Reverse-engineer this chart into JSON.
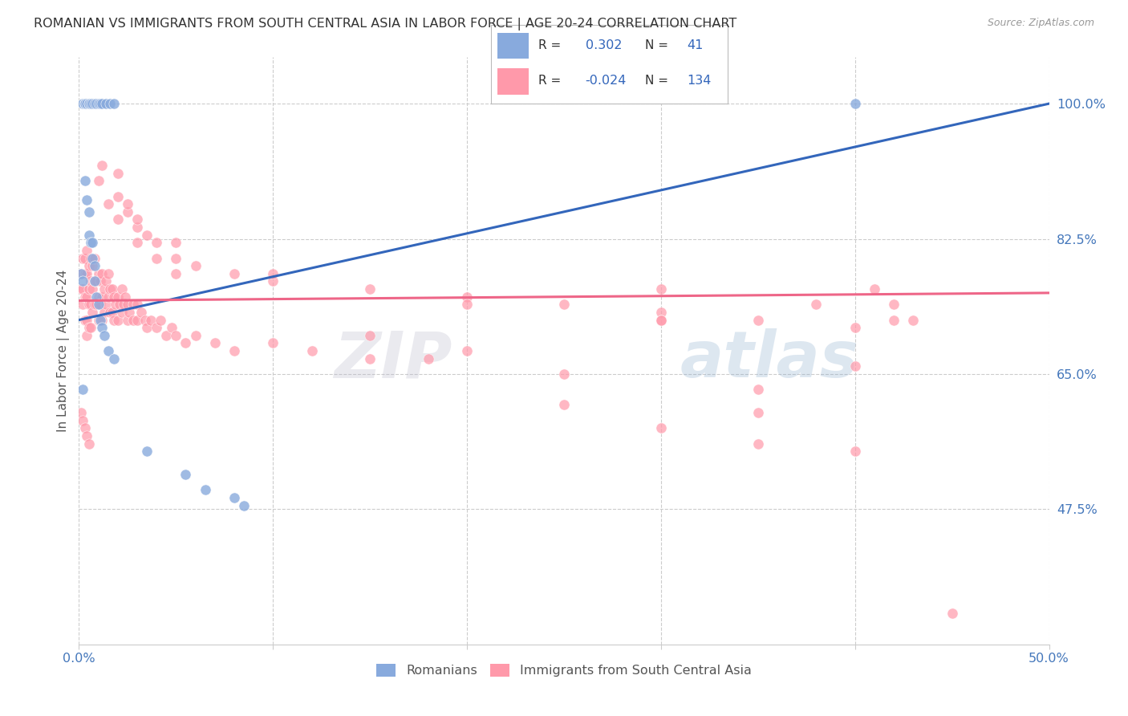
{
  "title": "ROMANIAN VS IMMIGRANTS FROM SOUTH CENTRAL ASIA IN LABOR FORCE | AGE 20-24 CORRELATION CHART",
  "source": "Source: ZipAtlas.com",
  "ylabel": "In Labor Force | Age 20-24",
  "xlim": [
    0.0,
    0.5
  ],
  "ylim": [
    0.3,
    1.06
  ],
  "yticks": [
    0.475,
    0.65,
    0.825,
    1.0
  ],
  "ytick_labels": [
    "47.5%",
    "65.0%",
    "82.5%",
    "100.0%"
  ],
  "xticks": [
    0.0,
    0.1,
    0.2,
    0.3,
    0.4,
    0.5
  ],
  "xtick_labels": [
    "0.0%",
    "",
    "",
    "",
    "",
    "50.0%"
  ],
  "blue_color": "#88AADD",
  "pink_color": "#FF99AA",
  "blue_line_color": "#3366BB",
  "pink_line_color": "#EE6688",
  "axis_color": "#4477BB",
  "watermark_text": "ZIPatlas",
  "watermark_color": "#AABBDD",
  "legend_R_color": "#3366BB",
  "ro_x": [
    0.002,
    0.003,
    0.003,
    0.004,
    0.005,
    0.005,
    0.006,
    0.007,
    0.008,
    0.009,
    0.01,
    0.011,
    0.012,
    0.014,
    0.016,
    0.018,
    0.003,
    0.004,
    0.005,
    0.005,
    0.006,
    0.007,
    0.007,
    0.008,
    0.008,
    0.009,
    0.01,
    0.011,
    0.012,
    0.013,
    0.015,
    0.018,
    0.002,
    0.035,
    0.055,
    0.065,
    0.08,
    0.085,
    0.4,
    0.001,
    0.002
  ],
  "ro_y": [
    1.0,
    1.0,
    1.0,
    1.0,
    1.0,
    1.0,
    1.0,
    1.0,
    1.0,
    1.0,
    1.0,
    1.0,
    1.0,
    1.0,
    1.0,
    1.0,
    0.9,
    0.875,
    0.86,
    0.83,
    0.82,
    0.82,
    0.8,
    0.79,
    0.77,
    0.75,
    0.74,
    0.72,
    0.71,
    0.7,
    0.68,
    0.67,
    0.63,
    0.55,
    0.52,
    0.5,
    0.49,
    0.48,
    1.0,
    0.78,
    0.77
  ],
  "im_x": [
    0.001,
    0.001,
    0.002,
    0.002,
    0.002,
    0.003,
    0.003,
    0.003,
    0.003,
    0.004,
    0.004,
    0.004,
    0.004,
    0.004,
    0.005,
    0.005,
    0.005,
    0.005,
    0.006,
    0.006,
    0.006,
    0.006,
    0.007,
    0.007,
    0.007,
    0.008,
    0.008,
    0.008,
    0.009,
    0.009,
    0.01,
    0.01,
    0.01,
    0.011,
    0.011,
    0.012,
    0.012,
    0.012,
    0.013,
    0.013,
    0.014,
    0.014,
    0.015,
    0.015,
    0.016,
    0.016,
    0.017,
    0.017,
    0.018,
    0.018,
    0.019,
    0.02,
    0.02,
    0.021,
    0.022,
    0.022,
    0.023,
    0.024,
    0.025,
    0.025,
    0.026,
    0.028,
    0.028,
    0.03,
    0.03,
    0.032,
    0.034,
    0.035,
    0.037,
    0.04,
    0.042,
    0.045,
    0.048,
    0.05,
    0.055,
    0.06,
    0.07,
    0.08,
    0.1,
    0.12,
    0.15,
    0.18,
    0.02,
    0.025,
    0.03,
    0.035,
    0.04,
    0.05,
    0.06,
    0.08,
    0.1,
    0.15,
    0.2,
    0.25,
    0.3,
    0.35,
    0.4,
    0.001,
    0.002,
    0.003,
    0.004,
    0.005,
    0.01,
    0.015,
    0.02,
    0.03,
    0.04,
    0.05,
    0.012,
    0.02,
    0.025,
    0.03,
    0.05,
    0.1,
    0.2,
    0.3,
    0.25,
    0.35,
    0.4,
    0.3,
    0.35,
    0.4,
    0.45,
    0.35,
    0.25,
    0.2,
    0.15,
    0.3,
    0.38,
    0.41,
    0.43,
    0.42,
    0.3,
    0.42
  ],
  "im_y": [
    0.78,
    0.76,
    0.8,
    0.76,
    0.74,
    0.8,
    0.78,
    0.75,
    0.72,
    0.81,
    0.78,
    0.75,
    0.72,
    0.7,
    0.79,
    0.76,
    0.74,
    0.71,
    0.8,
    0.77,
    0.74,
    0.71,
    0.79,
    0.76,
    0.73,
    0.8,
    0.77,
    0.74,
    0.77,
    0.74,
    0.78,
    0.75,
    0.72,
    0.77,
    0.74,
    0.78,
    0.75,
    0.72,
    0.76,
    0.73,
    0.77,
    0.74,
    0.78,
    0.75,
    0.76,
    0.73,
    0.76,
    0.73,
    0.75,
    0.72,
    0.74,
    0.75,
    0.72,
    0.74,
    0.76,
    0.73,
    0.74,
    0.75,
    0.74,
    0.72,
    0.73,
    0.74,
    0.72,
    0.74,
    0.72,
    0.73,
    0.72,
    0.71,
    0.72,
    0.71,
    0.72,
    0.7,
    0.71,
    0.7,
    0.69,
    0.7,
    0.69,
    0.68,
    0.69,
    0.68,
    0.67,
    0.67,
    0.88,
    0.86,
    0.84,
    0.83,
    0.82,
    0.8,
    0.79,
    0.78,
    0.77,
    0.76,
    0.75,
    0.74,
    0.73,
    0.72,
    0.71,
    0.6,
    0.59,
    0.58,
    0.57,
    0.56,
    0.9,
    0.87,
    0.85,
    0.82,
    0.8,
    0.78,
    0.92,
    0.91,
    0.87,
    0.85,
    0.82,
    0.78,
    0.74,
    0.72,
    0.61,
    0.6,
    0.66,
    0.58,
    0.56,
    0.55,
    0.34,
    0.63,
    0.65,
    0.68,
    0.7,
    0.72,
    0.74,
    0.76,
    0.72,
    0.74,
    0.76,
    0.72,
    0.74,
    0.76
  ]
}
